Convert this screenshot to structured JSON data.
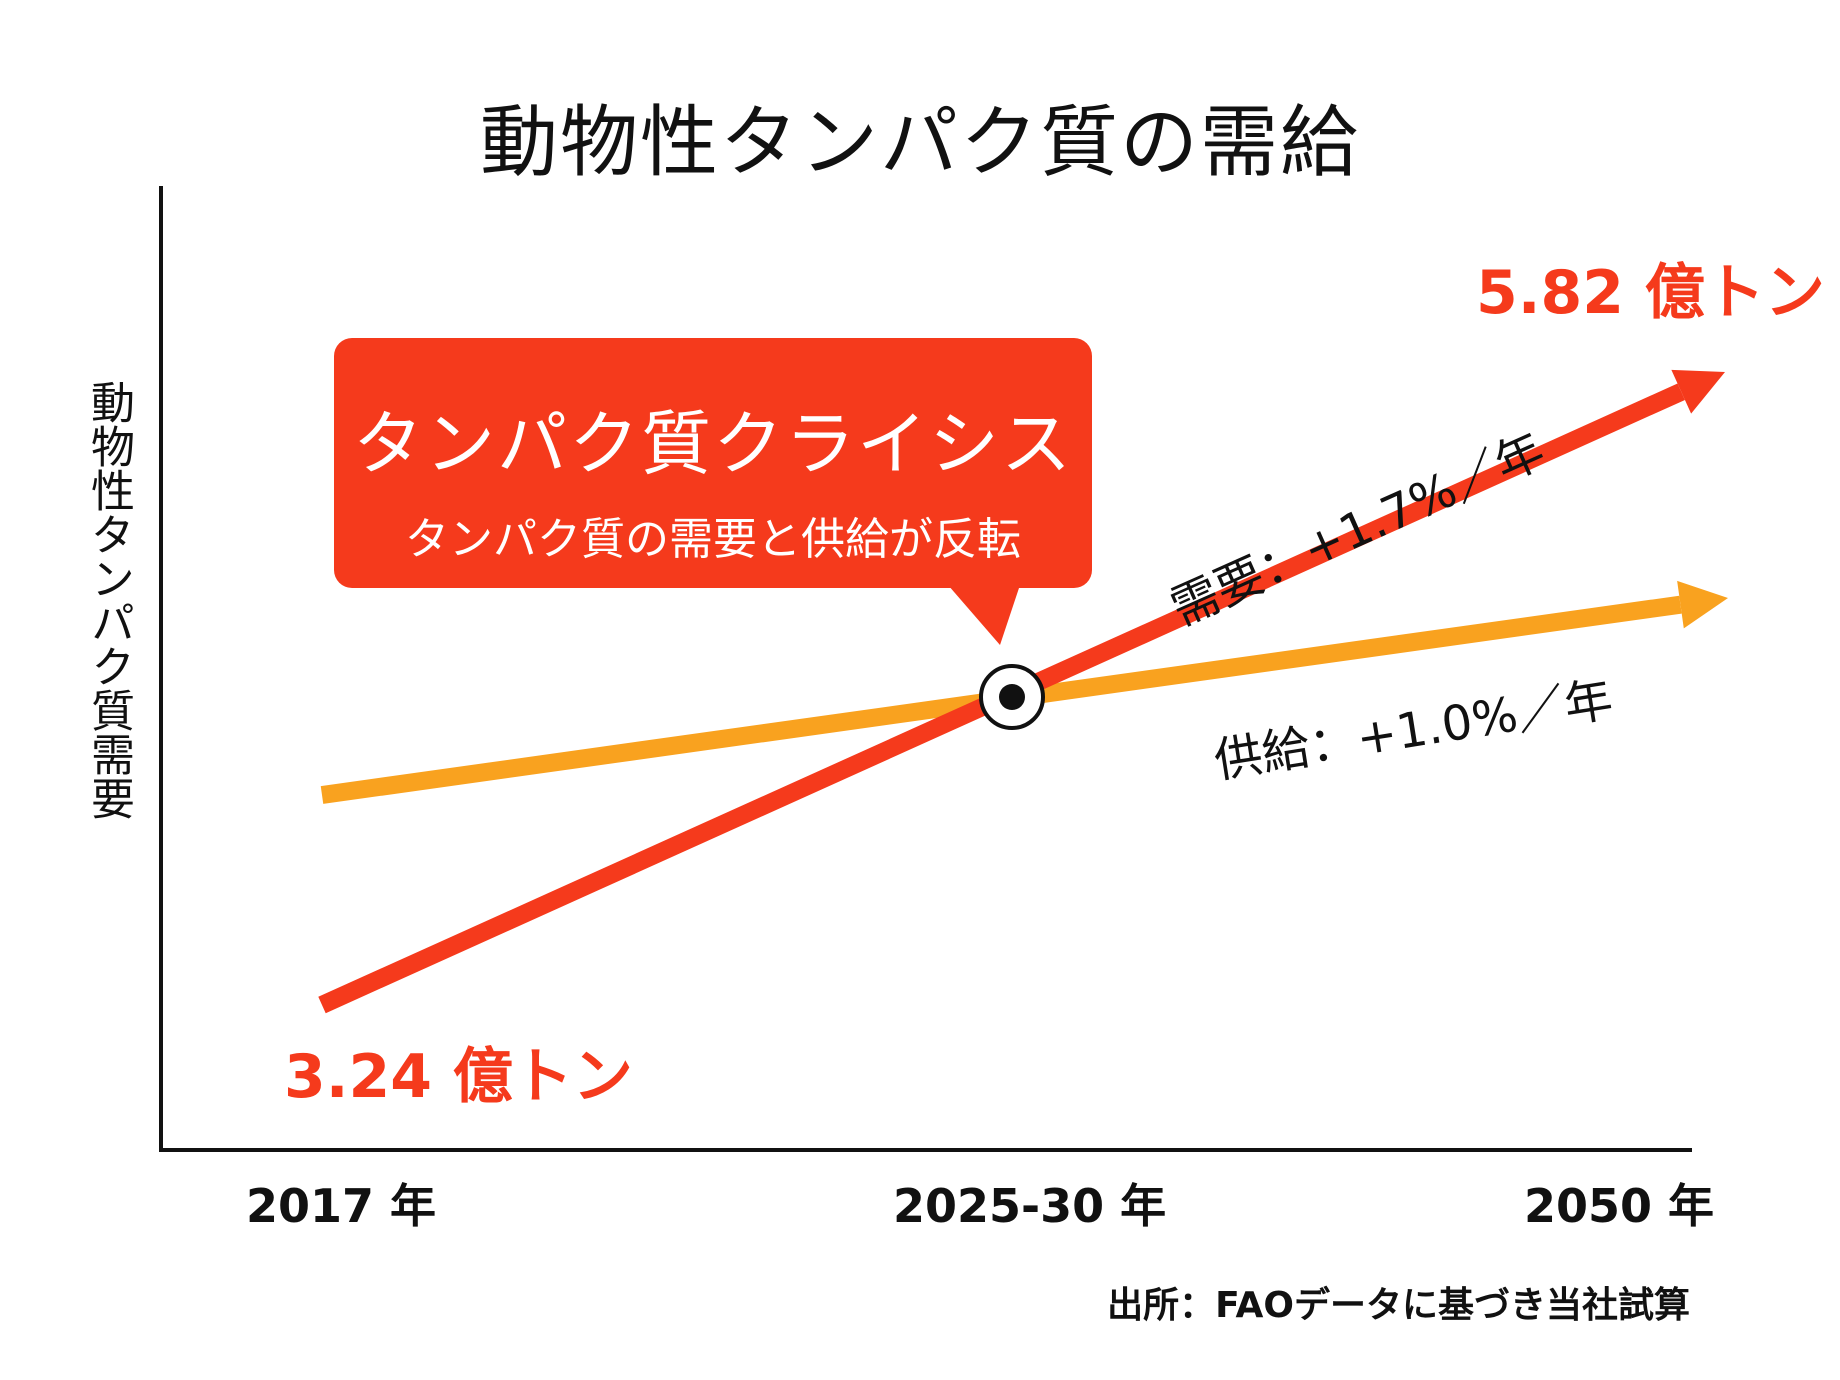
{
  "colors": {
    "demand": "#f53a1c",
    "supply": "#f9a21f",
    "callout_bg": "#f53a1c",
    "axis": "#111111",
    "text": "#111111"
  },
  "title": "動物性タンパク質の需給",
  "chart_data": {
    "type": "line",
    "title": "動物性タンパク質の需給",
    "ylabel": "動物性タンパク質需要",
    "xlabel": "",
    "categories": [
      "2017 年",
      "2025-30 年",
      "2050 年"
    ],
    "series": [
      {
        "name": "需要",
        "rate_label": "需要：+1.7%／年",
        "color": "#f53a1c",
        "start_label": "3.24 億トン",
        "end_label": "5.82 億トン"
      },
      {
        "name": "供給",
        "rate_label": "供給：+1.0%／年",
        "color": "#f9a21f"
      }
    ],
    "crossover": "2025-30 年",
    "grid": false,
    "legend": "none"
  },
  "callout": {
    "title": "タンパク質クライシス",
    "subtitle": "タンパク質の需要と供給が反転"
  },
  "source": "出所：FAOデータに基づき当社試算"
}
